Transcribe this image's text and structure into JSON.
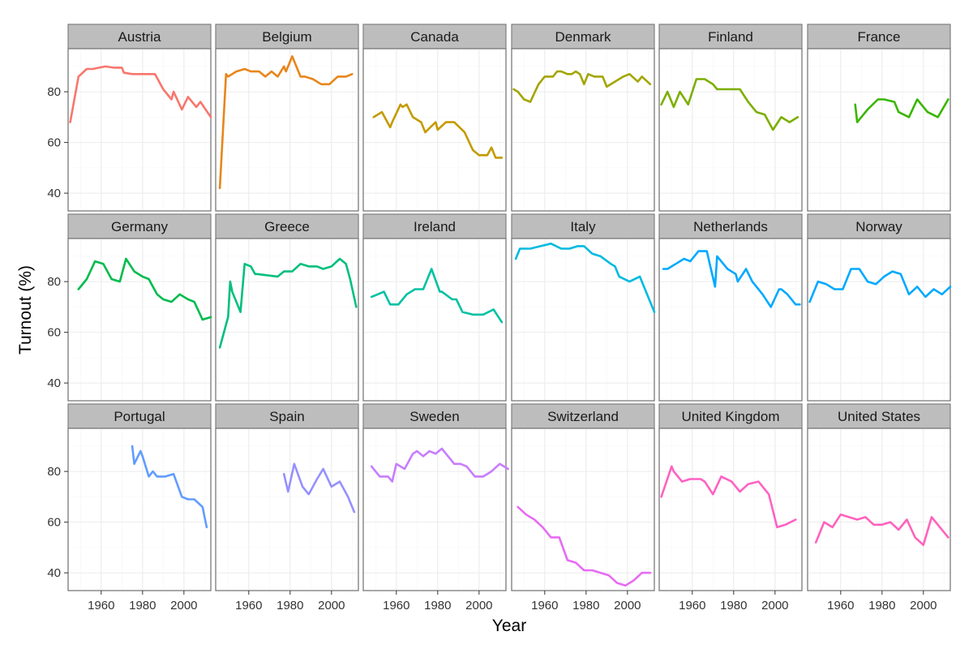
{
  "chart_data": {
    "type": "line",
    "facet_layout": "3 rows x 6 columns",
    "xlabel": "Year",
    "ylabel": "Turnout (%)",
    "xlim": [
      1944,
      2013
    ],
    "ylim": [
      33,
      97
    ],
    "x_ticks": [
      1960,
      1980,
      2000
    ],
    "x_tick_labels": [
      "1960",
      "1980",
      "2000"
    ],
    "y_ticks": [
      40,
      60,
      80
    ],
    "y_tick_labels": [
      "40",
      "60",
      "80"
    ],
    "grid": true,
    "series": [
      {
        "name": "Austria",
        "color": "#F8766D",
        "x": [
          1945,
          1949,
          1953,
          1956,
          1959,
          1962,
          1966,
          1970,
          1971,
          1975,
          1979,
          1983,
          1986,
          1990,
          1994,
          1995,
          1999,
          2002,
          2006,
          2008,
          2013
        ],
        "values": [
          68,
          86,
          89,
          89,
          89.5,
          90,
          89.5,
          89.5,
          87.5,
          87,
          87,
          87,
          87,
          81,
          77,
          80,
          73,
          78,
          74,
          76,
          70
        ]
      },
      {
        "name": "Belgium",
        "color": "#E7861B",
        "x": [
          1946,
          1949,
          1950,
          1954,
          1958,
          1961,
          1965,
          1968,
          1971,
          1974,
          1977,
          1978,
          1981,
          1985,
          1987,
          1991,
          1995,
          1999,
          2003,
          2007,
          2010
        ],
        "values": [
          42,
          87,
          86,
          88,
          89,
          88,
          88,
          86,
          88,
          86,
          90,
          88,
          94,
          86,
          86,
          85,
          83,
          83,
          86,
          86,
          87
        ]
      },
      {
        "name": "Canada",
        "color": "#C49A00",
        "x": [
          1949,
          1953,
          1957,
          1958,
          1962,
          1963,
          1965,
          1968,
          1972,
          1974,
          1979,
          1980,
          1984,
          1988,
          1993,
          1997,
          2000,
          2004,
          2006,
          2008,
          2011
        ],
        "values": [
          70,
          72,
          66,
          68,
          75,
          74,
          75,
          70,
          68,
          64,
          68,
          65,
          68,
          68,
          64,
          57,
          55,
          55,
          58,
          54,
          54
        ]
      },
      {
        "name": "Denmark",
        "color": "#A3A500",
        "x": [
          1945,
          1947,
          1950,
          1953,
          1957,
          1960,
          1964,
          1966,
          1968,
          1971,
          1973,
          1975,
          1977,
          1979,
          1981,
          1984,
          1987,
          1988,
          1990,
          1994,
          1998,
          2001,
          2005,
          2007,
          2011
        ],
        "values": [
          81,
          80,
          77,
          76,
          83,
          86,
          86,
          88,
          88,
          87,
          87,
          88,
          87,
          83,
          87,
          86,
          86,
          86,
          82,
          84,
          86,
          87,
          84,
          86,
          83
        ]
      },
      {
        "name": "Finland",
        "color": "#7CAE00",
        "x": [
          1945,
          1948,
          1951,
          1954,
          1958,
          1962,
          1966,
          1970,
          1972,
          1975,
          1979,
          1983,
          1987,
          1991,
          1995,
          1999,
          2003,
          2007,
          2011
        ],
        "values": [
          75,
          80,
          74,
          80,
          75,
          85,
          85,
          83,
          81,
          81,
          81,
          81,
          76,
          72,
          71,
          65,
          70,
          68,
          70
        ]
      },
      {
        "name": "France",
        "color": "#39B600",
        "x": [
          1967,
          1968,
          1973,
          1978,
          1981,
          1986,
          1988,
          1993,
          1997,
          2002,
          2007,
          2012
        ],
        "values": [
          75,
          68,
          73,
          77,
          77,
          76,
          72,
          70,
          77,
          72,
          70,
          77
        ]
      },
      {
        "name": "Germany",
        "color": "#00BB4E",
        "x": [
          1949,
          1953,
          1957,
          1961,
          1965,
          1969,
          1972,
          1976,
          1980,
          1983,
          1987,
          1990,
          1994,
          1998,
          2002,
          2005,
          2009,
          2013
        ],
        "values": [
          77,
          81,
          88,
          87,
          81,
          80,
          89,
          84,
          82,
          81,
          75,
          73,
          72,
          75,
          73,
          72,
          65,
          66
        ]
      },
      {
        "name": "Greece",
        "color": "#00BF7D",
        "x": [
          1946,
          1950,
          1951,
          1952,
          1956,
          1958,
          1961,
          1963,
          1964,
          1974,
          1977,
          1981,
          1985,
          1989,
          1990,
          1993,
          1996,
          2000,
          2004,
          2007,
          2009,
          2012
        ],
        "values": [
          54,
          66,
          80,
          76,
          68,
          87,
          86,
          83,
          83,
          82,
          84,
          84,
          87,
          86,
          86,
          86,
          85,
          86,
          89,
          87,
          81,
          70
        ]
      },
      {
        "name": "Ireland",
        "color": "#00C1A3",
        "x": [
          1948,
          1951,
          1954,
          1957,
          1961,
          1965,
          1969,
          1973,
          1977,
          1981,
          1982,
          1987,
          1989,
          1992,
          1997,
          2002,
          2007,
          2011
        ],
        "values": [
          74,
          75,
          76,
          71,
          71,
          75,
          77,
          77,
          85,
          76,
          76,
          73,
          73,
          68,
          67,
          67,
          69,
          64
        ]
      },
      {
        "name": "Italy",
        "color": "#00BAE0",
        "x": [
          1946,
          1948,
          1953,
          1958,
          1963,
          1968,
          1972,
          1976,
          1979,
          1983,
          1987,
          1992,
          1994,
          1996,
          2001,
          2006,
          2008,
          2013
        ],
        "values": [
          89,
          93,
          93,
          94,
          95,
          93,
          93,
          94,
          94,
          91,
          90,
          87,
          86,
          82,
          80,
          82,
          78,
          68
        ]
      },
      {
        "name": "Netherlands",
        "color": "#00A9FF",
        "x": [
          1946,
          1948,
          1952,
          1956,
          1959,
          1963,
          1967,
          1971,
          1972,
          1977,
          1981,
          1982,
          1986,
          1989,
          1994,
          1998,
          2002,
          2003,
          2006,
          2010,
          2012
        ],
        "values": [
          85,
          85,
          87,
          89,
          88,
          92,
          92,
          78,
          90,
          85,
          83,
          80,
          85,
          80,
          75,
          70,
          77,
          77,
          75,
          71,
          71
        ]
      },
      {
        "name": "Norway",
        "color": "#00A9FF",
        "x": [
          1945,
          1949,
          1953,
          1957,
          1961,
          1965,
          1969,
          1973,
          1977,
          1981,
          1985,
          1989,
          1993,
          1997,
          2001,
          2005,
          2009,
          2013
        ],
        "values": [
          72,
          80,
          79,
          77,
          77,
          85,
          85,
          80,
          79,
          82,
          84,
          83,
          75,
          78,
          74,
          77,
          75,
          78
        ]
      },
      {
        "name": "Portugal",
        "color": "#619CFF",
        "x": [
          1975,
          1976,
          1979,
          1980,
          1983,
          1985,
          1987,
          1991,
          1995,
          1999,
          2002,
          2005,
          2009,
          2011
        ],
        "values": [
          90,
          83,
          88,
          86,
          78,
          80,
          78,
          78,
          79,
          70,
          69,
          69,
          66,
          58
        ]
      },
      {
        "name": "Spain",
        "color": "#9590FF",
        "x": [
          1977,
          1979,
          1982,
          1986,
          1989,
          1993,
          1996,
          2000,
          2004,
          2008,
          2011
        ],
        "values": [
          79,
          72,
          83,
          74,
          71,
          77,
          81,
          74,
          76,
          70,
          64
        ]
      },
      {
        "name": "Sweden",
        "color": "#C77CFF",
        "x": [
          1948,
          1952,
          1956,
          1958,
          1960,
          1964,
          1968,
          1970,
          1973,
          1976,
          1979,
          1982,
          1985,
          1988,
          1991,
          1994,
          1998,
          2002,
          2006,
          2010,
          2014
        ],
        "values": [
          82,
          78,
          78,
          76,
          83,
          81,
          87,
          88,
          86,
          88,
          87,
          89,
          86,
          83,
          83,
          82,
          78,
          78,
          80,
          83,
          81
        ]
      },
      {
        "name": "Switzerland",
        "color": "#E76BF3",
        "x": [
          1947,
          1951,
          1955,
          1959,
          1963,
          1967,
          1971,
          1975,
          1979,
          1983,
          1987,
          1991,
          1995,
          1999,
          2003,
          2007,
          2011
        ],
        "values": [
          66,
          63,
          61,
          58,
          54,
          54,
          45,
          44,
          41,
          41,
          40,
          39,
          36,
          35,
          37,
          40,
          40
        ]
      },
      {
        "name": "United Kingdom",
        "color": "#FF61C3",
        "x": [
          1945,
          1950,
          1951,
          1955,
          1959,
          1964,
          1966,
          1970,
          1974,
          1979,
          1983,
          1987,
          1992,
          1997,
          2001,
          2005,
          2010
        ],
        "values": [
          70,
          82,
          80,
          76,
          77,
          77,
          76,
          71,
          78,
          76,
          72,
          75,
          76,
          71,
          58,
          59,
          61
        ]
      },
      {
        "name": "United States",
        "color": "#FF62BC",
        "x": [
          1948,
          1952,
          1956,
          1960,
          1964,
          1968,
          1972,
          1976,
          1980,
          1984,
          1988,
          1992,
          1996,
          2000,
          2004,
          2008,
          2012
        ],
        "values": [
          52,
          60,
          58,
          63,
          62,
          61,
          62,
          59,
          59,
          60,
          57,
          61,
          54,
          51,
          62,
          58,
          54
        ]
      }
    ]
  }
}
